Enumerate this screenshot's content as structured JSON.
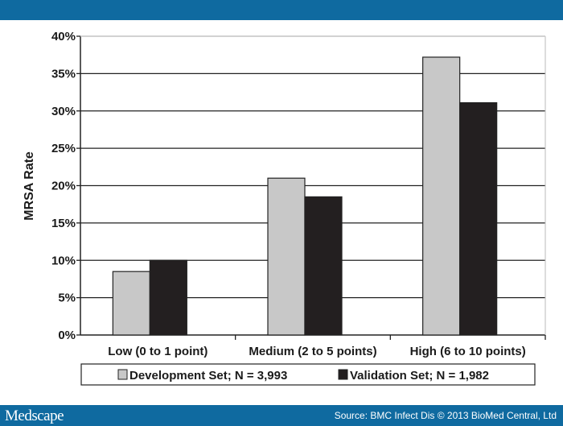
{
  "footer": {
    "logo": "Medscape",
    "source": "Source: BMC Infect Dis © 2013 BioMed Central, Ltd"
  },
  "colors": {
    "band": "#0f6aa0",
    "development": "#c8c8c8",
    "validation": "#231f20"
  },
  "chart_data": {
    "type": "bar",
    "title": "",
    "xlabel": "",
    "ylabel": "MRSA Rate",
    "ylim": [
      0,
      40
    ],
    "yticks": [
      "0%",
      "5%",
      "10%",
      "15%",
      "20%",
      "25%",
      "30%",
      "35%",
      "40%"
    ],
    "grid": true,
    "legend_position": "bottom",
    "categories": [
      "Low (0 to 1 point)",
      "Medium (2 to 5 points)",
      "High (6 to 10 points)"
    ],
    "series": [
      {
        "name": "Development Set; N = 3,993",
        "values": [
          8.5,
          21.0,
          37.2
        ]
      },
      {
        "name": "Validation Set; N = 1,982",
        "values": [
          10.0,
          18.5,
          31.1
        ]
      }
    ]
  }
}
